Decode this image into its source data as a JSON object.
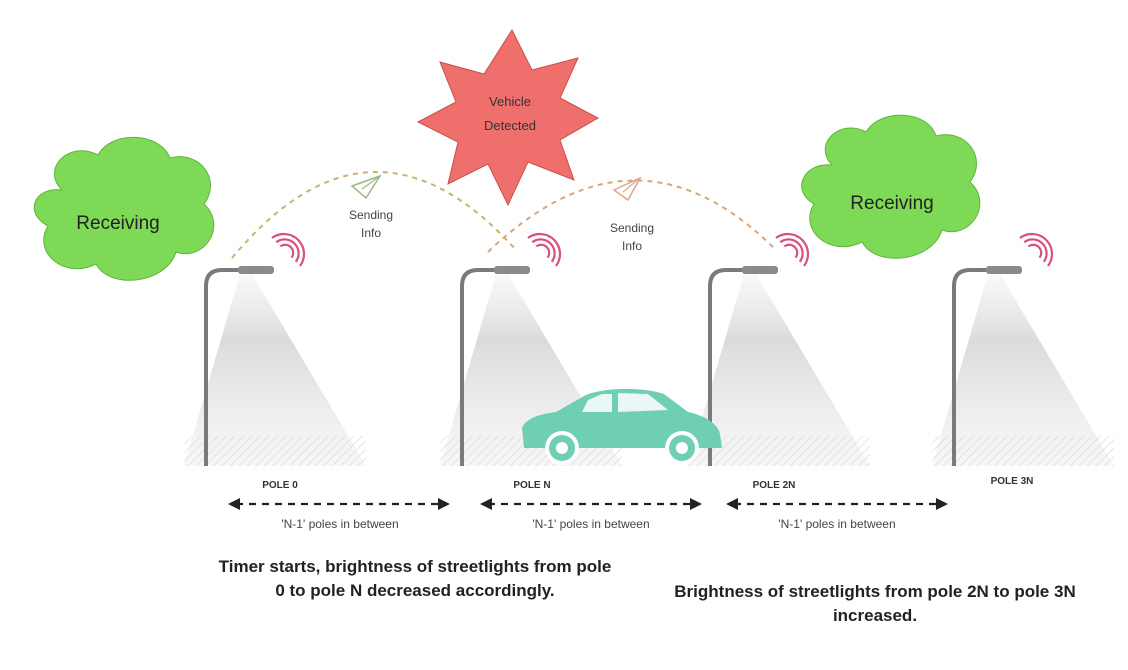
{
  "bubbles": {
    "vehicle_detected_line1": "Vehicle",
    "vehicle_detected_line2": "Detected",
    "receiving_left": "Receiving",
    "receiving_right": "Receiving"
  },
  "messages": {
    "sending_left_line1": "Sending",
    "sending_left_line2": "Info",
    "sending_right_line1": "Sending",
    "sending_right_line2": "Info"
  },
  "poles": [
    {
      "label": "POLE 0"
    },
    {
      "label": "POLE N"
    },
    {
      "label": "POLE 2N"
    },
    {
      "label": "POLE 3N"
    }
  ],
  "spans": [
    {
      "label": "'N-1' poles in between"
    },
    {
      "label": "'N-1' poles in between"
    },
    {
      "label": "'N-1' poles in between"
    }
  ],
  "captions": {
    "left": "Timer starts, brightness of streetlights from pole 0 to pole N decreased accordingly.",
    "right": "Brightness of streetlights from pole 2N to pole 3N increased."
  },
  "colors": {
    "burst_fill": "#ef6f6c",
    "cloud_fill": "#7ed957",
    "car_fill": "#6fcfb5",
    "signal": "#d94f7d",
    "arc": "#c8b36a",
    "pole": "#7a7a7a"
  }
}
